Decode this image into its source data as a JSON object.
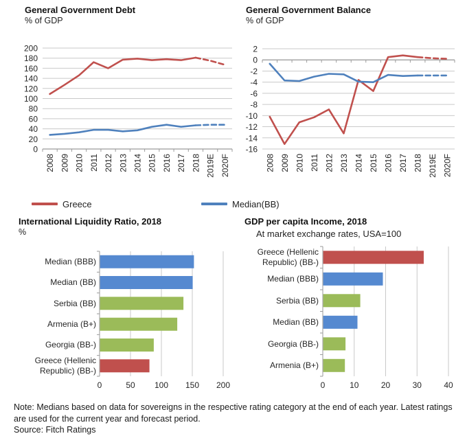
{
  "chart_data": [
    {
      "id": "debt",
      "type": "line",
      "title": "General Government Debt",
      "subtitle": "% of GDP",
      "x": [
        "2008",
        "2009",
        "2010",
        "2011",
        "2012",
        "2013",
        "2014",
        "2015",
        "2016",
        "2017",
        "2018",
        "2019E",
        "2020F"
      ],
      "ylim": [
        0,
        200
      ],
      "ytick_step": 20,
      "axis_at": 0,
      "grid": true,
      "forecast_from_index": 10,
      "series": [
        {
          "name": "Greece",
          "color": "#c0504d",
          "values": [
            109,
            127,
            146,
            172,
            160,
            177,
            179,
            176,
            178,
            176,
            181,
            175,
            167
          ]
        },
        {
          "name": "Median(BB)",
          "color": "#4f81bd",
          "values": [
            28,
            30,
            33,
            38,
            38,
            35,
            37,
            44,
            48,
            44,
            47,
            48,
            48
          ]
        }
      ]
    },
    {
      "id": "balance",
      "type": "line",
      "title": "General Government Balance",
      "subtitle": "% of GDP",
      "x": [
        "2008",
        "2009",
        "2010",
        "2011",
        "2012",
        "2013",
        "2014",
        "2015",
        "2016",
        "2017",
        "2018",
        "2019E",
        "2020F"
      ],
      "ylim": [
        -16,
        2
      ],
      "ytick_step": 2,
      "axis_at": 0,
      "grid": true,
      "forecast_from_index": 10,
      "series": [
        {
          "name": "Greece",
          "color": "#c0504d",
          "values": [
            -10.2,
            -15.1,
            -11.2,
            -10.3,
            -8.9,
            -13.2,
            -3.6,
            -5.6,
            0.5,
            0.8,
            0.5,
            0.3,
            0.2
          ]
        },
        {
          "name": "Median(BB)",
          "color": "#4f81bd",
          "values": [
            -0.7,
            -3.7,
            -3.8,
            -3.0,
            -2.5,
            -2.6,
            -3.9,
            -4.0,
            -2.7,
            -2.9,
            -2.8,
            -2.8,
            -2.8
          ]
        }
      ]
    },
    {
      "id": "liquidity",
      "type": "bar",
      "title": "International Liquidity Ratio, 2018",
      "subtitle": "%",
      "categories": [
        "Median (BBB)",
        "Median (BB)",
        "Serbia (BB)",
        "Armenia (B+)",
        "Georgia (BB-)",
        "Greece (Hellenic Republic) (BB-)"
      ],
      "values": [
        152,
        150,
        135,
        125,
        87,
        80
      ],
      "colors": [
        "#5589d0",
        "#5589d0",
        "#9bbb59",
        "#9bbb59",
        "#9bbb59",
        "#c0504d"
      ],
      "xlim": [
        0,
        200
      ],
      "xticks": [
        0,
        50,
        100,
        150,
        200
      ],
      "grid": true
    },
    {
      "id": "gdp",
      "type": "bar",
      "title": "GDP per capita Income, 2018",
      "subtitle": "At market exchange rates, USA=100",
      "categories": [
        "Greece (Hellenic Republic) (BB-)",
        "Median (BBB)",
        "Serbia (BB)",
        "Median (BB)",
        "Georgia (BB-)",
        "Armenia (B+)"
      ],
      "values": [
        32,
        19,
        11.8,
        10.9,
        7.1,
        6.9
      ],
      "colors": [
        "#c0504d",
        "#5589d0",
        "#9bbb59",
        "#5589d0",
        "#9bbb59",
        "#9bbb59"
      ],
      "xlim": [
        0,
        40
      ],
      "xticks": [
        0,
        10,
        20,
        30,
        40
      ],
      "grid": true
    }
  ],
  "legend": {
    "items": [
      {
        "label": "Greece",
        "color": "#c0504d"
      },
      {
        "label": "Median(BB)",
        "color": "#4f81bd"
      }
    ]
  },
  "note": {
    "text": "Note: Medians based on data for sovereigns in the respective rating category at the end of each year. Latest ratings are used for the current year and forecast period.",
    "source": "Source: Fitch Ratings"
  },
  "palette": {
    "greece_red": "#c0504d",
    "median_blue_line": "#4f81bd",
    "median_blue_bar": "#5589d0",
    "peer_green": "#9bbb59",
    "gridline": "#c9c9c9",
    "axis": "#9a9a9a"
  }
}
